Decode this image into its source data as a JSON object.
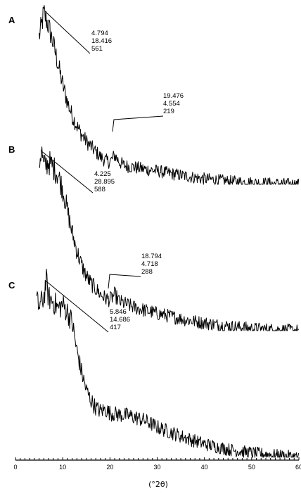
{
  "chart_data": {
    "type": "line",
    "xlabel": "(°2θ)",
    "xlim": [
      0,
      60
    ],
    "x_ticks": [
      "0",
      "10",
      "20",
      "30",
      "40",
      "50",
      "60"
    ],
    "grid": false,
    "panels": [
      {
        "label": "A",
        "series": [
          {
            "x": [
              5,
              5.5,
              6,
              7,
              8,
              9,
              10,
              11,
              12,
              13,
              14,
              15,
              16,
              17,
              18,
              19,
              20,
              21,
              22,
              23,
              25,
              27,
              30,
              33,
              36,
              40,
              45,
              50,
              55,
              60
            ],
            "y": [
              0.86,
              0.92,
              1.0,
              0.92,
              0.82,
              0.7,
              0.58,
              0.48,
              0.4,
              0.34,
              0.29,
              0.25,
              0.22,
              0.19,
              0.16,
              0.14,
              0.13,
              0.17,
              0.13,
              0.11,
              0.1,
              0.09,
              0.078,
              0.062,
              0.048,
              0.032,
              0.018,
              0.01,
              0.004,
              0.0
            ]
          }
        ],
        "annotations": [
          {
            "lines": [
              "4.794",
              "18.416",
              "561"
            ]
          },
          {
            "lines": [
              "19.476",
              "4.554",
              "219"
            ]
          }
        ]
      },
      {
        "label": "B",
        "series": [
          {
            "x": [
              5,
              5.5,
              6,
              7,
              8,
              9,
              10,
              11,
              12,
              13,
              14,
              15,
              16,
              17,
              18,
              19,
              20,
              21,
              22,
              23,
              25,
              27,
              30,
              33,
              36,
              40,
              45,
              50,
              55,
              60
            ],
            "y": [
              0.92,
              1.0,
              0.9,
              0.93,
              0.9,
              0.86,
              0.78,
              0.66,
              0.54,
              0.44,
              0.36,
              0.3,
              0.26,
              0.23,
              0.2,
              0.18,
              0.17,
              0.2,
              0.16,
              0.15,
              0.13,
              0.115,
              0.095,
              0.078,
              0.06,
              0.042,
              0.025,
              0.012,
              0.005,
              0.0
            ]
          }
        ],
        "annotations": [
          {
            "lines": [
              "4.225",
              "28.895",
              "588"
            ]
          },
          {
            "lines": [
              "18.794",
              "4.718",
              "288"
            ]
          }
        ]
      },
      {
        "label": "C",
        "series": [
          {
            "x": [
              4.5,
              5,
              6,
              6.5,
              7,
              8,
              9,
              10,
              11,
              12,
              13,
              14,
              15,
              16,
              17,
              18,
              19,
              20,
              22,
              24,
              26,
              28,
              30,
              33,
              36,
              40,
              45,
              50,
              55,
              60
            ],
            "y": [
              0.88,
              0.85,
              0.9,
              1.0,
              0.9,
              0.88,
              0.84,
              0.86,
              0.82,
              0.76,
              0.6,
              0.48,
              0.38,
              0.32,
              0.28,
              0.26,
              0.27,
              0.25,
              0.24,
              0.235,
              0.22,
              0.2,
              0.17,
              0.14,
              0.11,
              0.075,
              0.045,
              0.025,
              0.012,
              0.0
            ]
          }
        ],
        "annotations": [
          {
            "lines": [
              "5.846",
              "14.686",
              "417"
            ]
          }
        ]
      }
    ]
  }
}
